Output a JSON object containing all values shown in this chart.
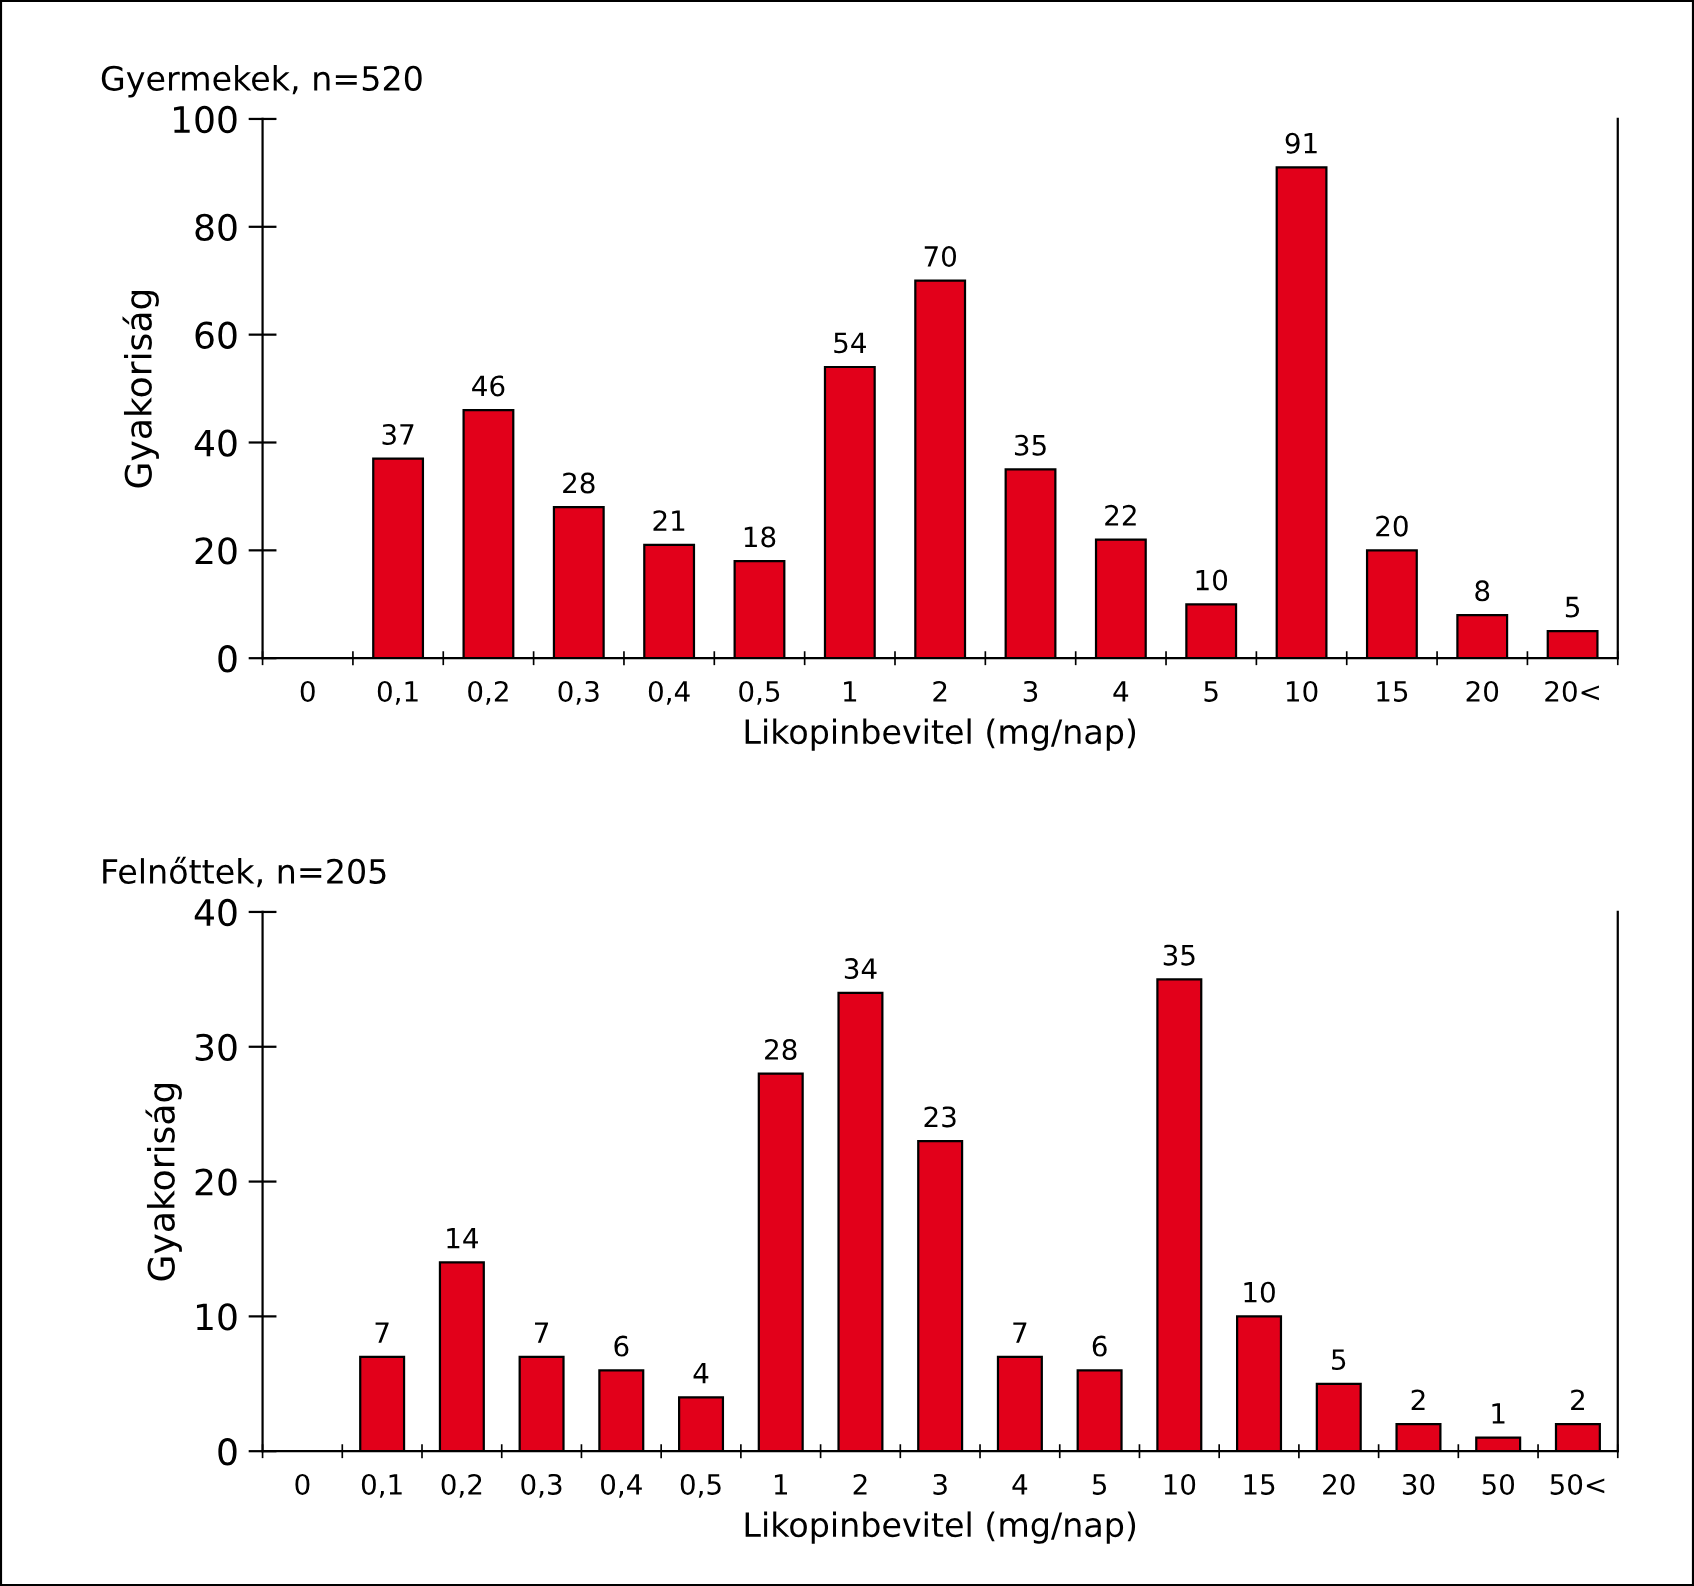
{
  "chart_data": [
    {
      "type": "bar",
      "title": "Gyermekek, n=520",
      "xlabel": "Likopinbevitel (mg/nap)",
      "ylabel": "Gyakoriság",
      "categories": [
        "0",
        "0,1",
        "0,2",
        "0,3",
        "0,4",
        "0,5",
        "1",
        "2",
        "3",
        "4",
        "5",
        "10",
        "15",
        "20",
        "20<"
      ],
      "values": [
        null,
        37,
        46,
        28,
        21,
        18,
        54,
        70,
        35,
        22,
        10,
        91,
        20,
        8,
        5
      ],
      "color": "#e2001a",
      "ylim": [
        0,
        100
      ],
      "yticks": [
        0,
        20,
        40,
        60,
        80,
        100
      ],
      "data_labels": true
    },
    {
      "type": "bar",
      "title": "Felnőttek, n=205",
      "xlabel": "Likopinbevitel (mg/nap)",
      "ylabel": "Gyakoriság",
      "categories": [
        "0",
        "0,1",
        "0,2",
        "0,3",
        "0,4",
        "0,5",
        "1",
        "2",
        "3",
        "4",
        "5",
        "10",
        "15",
        "20",
        "30",
        "50",
        "50<"
      ],
      "values": [
        null,
        7,
        14,
        7,
        6,
        4,
        28,
        34,
        23,
        7,
        6,
        35,
        10,
        5,
        2,
        1,
        2
      ],
      "color": "#e2001a",
      "ylim": [
        0,
        40
      ],
      "yticks": [
        0,
        10,
        20,
        30,
        40
      ],
      "data_labels": true
    }
  ]
}
